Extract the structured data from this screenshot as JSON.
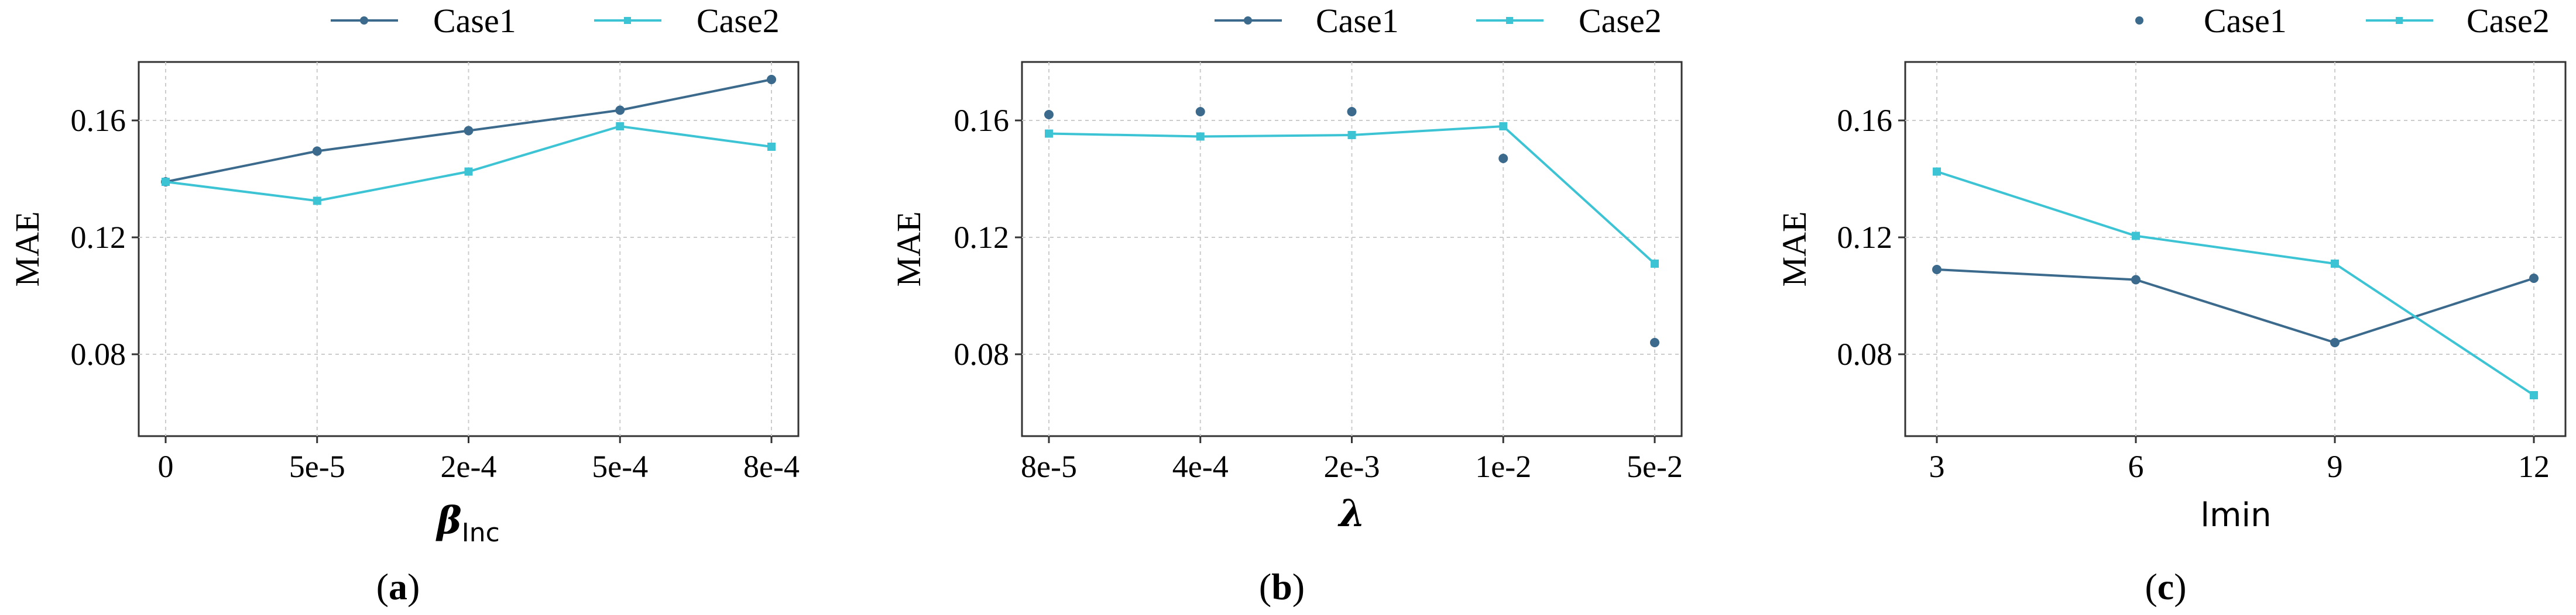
{
  "colors": {
    "case1": "#3b6a8c",
    "case2": "#3cc3d4"
  },
  "chart_data": [
    {
      "type": "line",
      "panel": "a",
      "caption": "(a)",
      "caption_letter": "a",
      "legend": [
        "Case1",
        "Case2"
      ],
      "ylabel": "MAE",
      "xlabel": {
        "main": "β",
        "sub": "Inc"
      },
      "categories": [
        "0",
        "5e-5",
        "2e-4",
        "5e-4",
        "8e-4"
      ],
      "yticks": [
        "0.08",
        "0.12",
        "0.16"
      ],
      "ytick_values": [
        0.08,
        0.12,
        0.16
      ],
      "ylim": [
        0.052,
        0.18
      ],
      "grid": true,
      "series": [
        {
          "name": "Case1",
          "values": [
            0.139,
            0.1495,
            0.1565,
            0.1635,
            0.174
          ],
          "style": "line"
        },
        {
          "name": "Case2",
          "values": [
            0.139,
            0.1325,
            0.1425,
            0.158,
            0.151
          ],
          "style": "line"
        }
      ]
    },
    {
      "type": "line",
      "panel": "b",
      "caption": "(b)",
      "caption_letter": "b",
      "legend": [
        "Case1",
        "Case2"
      ],
      "ylabel": "MAE",
      "xlabel": {
        "main": "λ"
      },
      "categories": [
        "8e-5",
        "4e-4",
        "2e-3",
        "1e-2",
        "5e-2"
      ],
      "yticks": [
        "0.08",
        "0.12",
        "0.16"
      ],
      "ytick_values": [
        0.08,
        0.12,
        0.16
      ],
      "ylim": [
        0.052,
        0.18
      ],
      "grid": true,
      "series": [
        {
          "name": "Case1",
          "values": [
            0.162,
            0.163,
            0.163,
            0.147,
            0.084
          ],
          "style": "markers"
        },
        {
          "name": "Case2",
          "values": [
            0.1555,
            0.1545,
            0.155,
            0.158,
            0.111
          ],
          "style": "line"
        }
      ]
    },
    {
      "type": "line",
      "panel": "c",
      "caption": "(c)",
      "caption_letter": "c",
      "legend": [
        "Case1",
        "Case2"
      ],
      "ylabel": "MAE",
      "xlabel": {
        "main": "lmin"
      },
      "categories": [
        "3",
        "6",
        "9",
        "12"
      ],
      "yticks": [
        "0.08",
        "0.12",
        "0.16"
      ],
      "ytick_values": [
        0.08,
        0.12,
        0.16
      ],
      "ylim": [
        0.052,
        0.18
      ],
      "grid": true,
      "series": [
        {
          "name": "Case1",
          "values": [
            0.109,
            0.1055,
            0.084,
            0.106
          ],
          "style": "line"
        },
        {
          "name": "Case2",
          "values": [
            0.1425,
            0.1205,
            0.111,
            0.066
          ],
          "style": "line"
        }
      ]
    }
  ]
}
